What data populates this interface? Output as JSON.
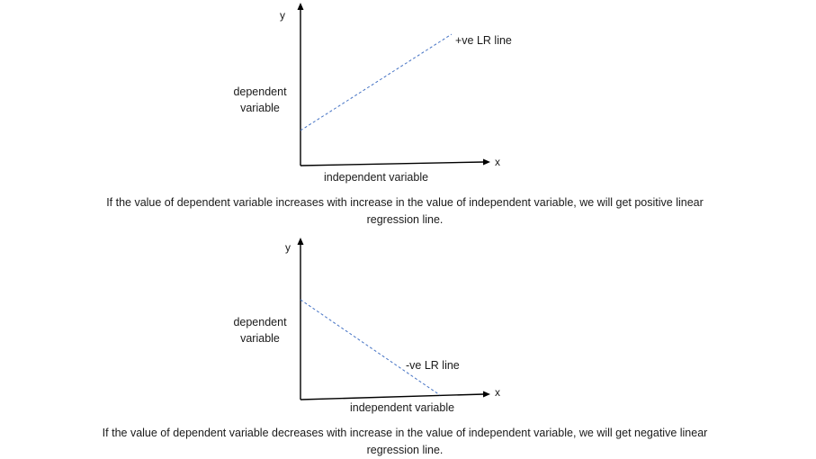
{
  "diagrams": [
    {
      "y_axis_letter": "y",
      "x_axis_letter": "x",
      "y_axis_label": "dependent variable",
      "x_axis_label": "independent variable",
      "line_label": "+ve LR line",
      "trend": "positive",
      "caption": "If the value of dependent variable increases with increase in the value of independent variable, we will get positive linear regression line."
    },
    {
      "y_axis_letter": "y",
      "x_axis_letter": "x",
      "y_axis_label": "dependent variable",
      "x_axis_label": "independent variable",
      "line_label": "-ve LR line",
      "trend": "negative",
      "caption": "If the value of dependent variable decreases with increase in the value of independent variable, we will get negative linear regression line."
    }
  ],
  "colors": {
    "axis": "#000000",
    "regression_line": "#4472c4",
    "text": "#1a1a1a"
  }
}
